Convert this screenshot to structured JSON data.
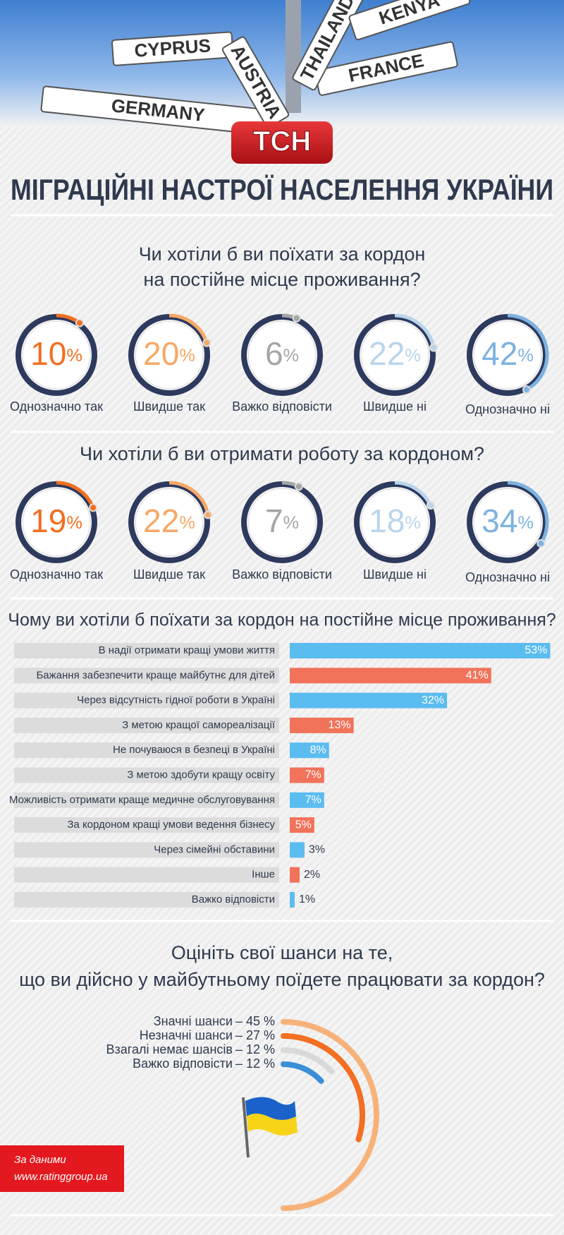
{
  "header": {
    "signs": [
      "CYPRUS",
      "GERMANY",
      "FRANCE",
      "THAILAND",
      "KENYA",
      "AUSTRIA"
    ],
    "logo": "ТСН",
    "title": "МІГРАЦІЙНІ НАСТРОЇ НАСЕЛЕННЯ УКРАЇНИ"
  },
  "chart_data": [
    {
      "type": "ring",
      "title": [
        "Чи хотіли б ви поїхати за кордон",
        "на постійне місце проживання?"
      ],
      "categories": [
        "Однозначно так",
        "Швидше так",
        "Важко відповісти",
        "Швидше ні",
        "Однозначно ні"
      ],
      "values": [
        10,
        20,
        6,
        22,
        42
      ],
      "value_labels": [
        "10%",
        "20%",
        "6%",
        "22%",
        "42%"
      ],
      "colors": [
        "#f26f21",
        "#f7a866",
        "#a5a5a5",
        "#b9d5ec",
        "#7eb2e0"
      ]
    },
    {
      "type": "ring",
      "title": [
        "Чи хотіли б ви отримати роботу за кордоном?"
      ],
      "categories": [
        "Однозначно так",
        "Швидше так",
        "Важко відповісти",
        "Швидше ні",
        "Однозначно ні"
      ],
      "values": [
        19,
        22,
        7,
        18,
        34
      ],
      "value_labels": [
        "19%",
        "22%",
        "7%",
        "18%",
        "34%"
      ],
      "colors": [
        "#f26f21",
        "#f7a866",
        "#a5a5a5",
        "#b9d5ec",
        "#7eb2e0"
      ]
    },
    {
      "type": "hbar",
      "title": [
        "Чому ви хотіли б поїхати за кордон на постійне місце проживання?"
      ],
      "categories": [
        "В надії отримати кращі умови життя",
        "Бажання забезпечити краще майбутнє для дітей",
        "Через відсутність гідної роботи в Україні",
        "З метою кращої самореалізації",
        "Не почуваюся в безпеці в Україні",
        "З метою здобути кращу освіту",
        "Можливість отримати краще медичне обслуговування",
        "За кордоном кращі умови ведення бізнесу",
        "Через сімейні обставини",
        "Інше",
        "Важко відповісти"
      ],
      "values": [
        53,
        41,
        32,
        13,
        8,
        7,
        7,
        5,
        3,
        2,
        1
      ],
      "value_labels": [
        "53%",
        "41%",
        "32%",
        "13%",
        "8%",
        "7%",
        "7%",
        "5%",
        "3%",
        "2%",
        "1%"
      ],
      "colors": [
        "#5bbcf0",
        "#f0735a",
        "#5bbcf0",
        "#f0735a",
        "#5bbcf0",
        "#f0735a",
        "#5bbcf0",
        "#f0735a",
        "#5bbcf0",
        "#f0735a",
        "#5bbcf0"
      ]
    },
    {
      "type": "radial_bar",
      "title": [
        "Оцініть свої шанси на те,",
        "що ви дійсно у майбутньому поїдете працювати за кордон?"
      ],
      "categories": [
        "Значні шанси",
        "Незначні шанси",
        "Взагалі немає шансів",
        "Важко відповісти"
      ],
      "values": [
        45,
        27,
        12,
        12
      ],
      "value_labels": [
        "– 45 %",
        "– 27 %",
        "– 12 %",
        "– 12 %"
      ],
      "colors": [
        "#f7b27a",
        "#f36f21",
        "#d9d9d9",
        "#3a8fd6"
      ]
    }
  ],
  "source": [
    "За даними",
    "www.ratinggroup.ua"
  ]
}
